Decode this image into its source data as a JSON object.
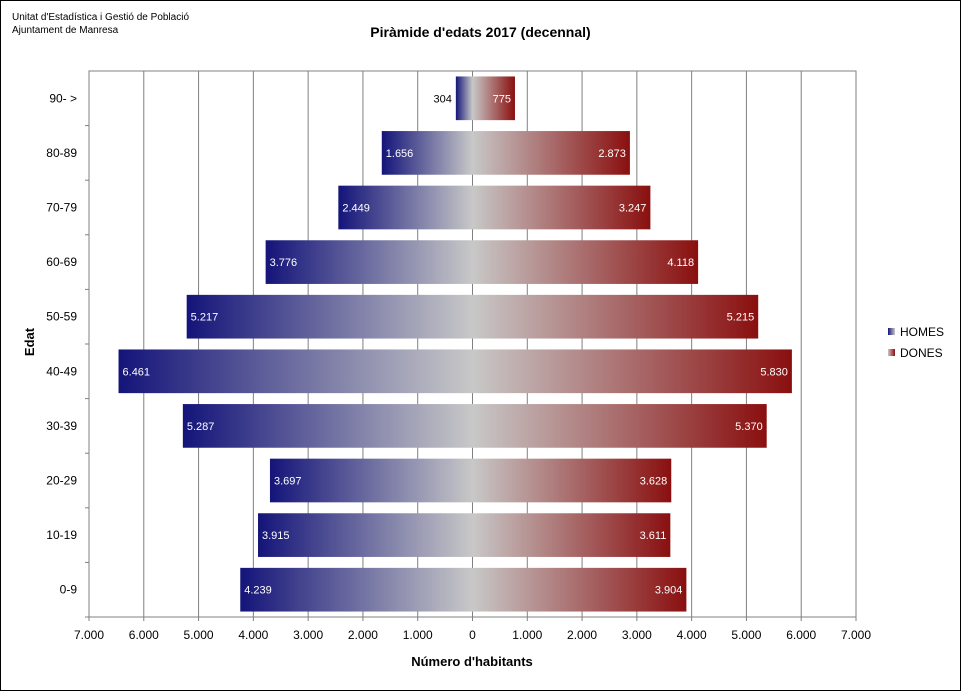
{
  "source": {
    "line1": "Unitat d'Estadística i Gestió de Població",
    "line2": "Ajuntament de Manresa"
  },
  "colors": {
    "homes_dark": "#14147a",
    "dones_dark": "#8a0f0f",
    "center": "#c8c8c8",
    "grid": "#808080"
  },
  "chart_data": {
    "type": "bar",
    "orientation": "horizontal-population-pyramid",
    "title": "Piràmide d'edats 2017 (decennal)",
    "xlabel": "Número d'habitants",
    "ylabel": "Edat",
    "categories": [
      "0-9",
      "10-19",
      "20-29",
      "30-39",
      "40-49",
      "50-59",
      "60-69",
      "70-79",
      "80-89",
      "90- >"
    ],
    "series": [
      {
        "name": "HOMES",
        "side": "left",
        "values": [
          4239,
          3915,
          3697,
          5287,
          6461,
          5217,
          3776,
          2449,
          1656,
          304
        ],
        "labels": [
          "4.239",
          "3.915",
          "3.697",
          "5.287",
          "6.461",
          "5.217",
          "3.776",
          "2.449",
          "1.656",
          "304"
        ]
      },
      {
        "name": "DONES",
        "side": "right",
        "values": [
          3904,
          3611,
          3628,
          5370,
          5830,
          5215,
          4118,
          3247,
          2873,
          775
        ],
        "labels": [
          "3.904",
          "3.611",
          "3.628",
          "5.370",
          "5.830",
          "5.215",
          "4.118",
          "3.247",
          "2.873",
          "775"
        ]
      }
    ],
    "xlim": [
      -7000,
      7000
    ],
    "xticks": [
      -7000,
      -6000,
      -5000,
      -4000,
      -3000,
      -2000,
      -1000,
      0,
      1000,
      2000,
      3000,
      4000,
      5000,
      6000,
      7000
    ],
    "xtick_labels": [
      "7.000",
      "6.000",
      "5.000",
      "4.000",
      "3.000",
      "2.000",
      "1.000",
      "0",
      "1.000",
      "2.000",
      "3.000",
      "4.000",
      "5.000",
      "6.000",
      "7.000"
    ],
    "grid": true,
    "legend": "right"
  }
}
